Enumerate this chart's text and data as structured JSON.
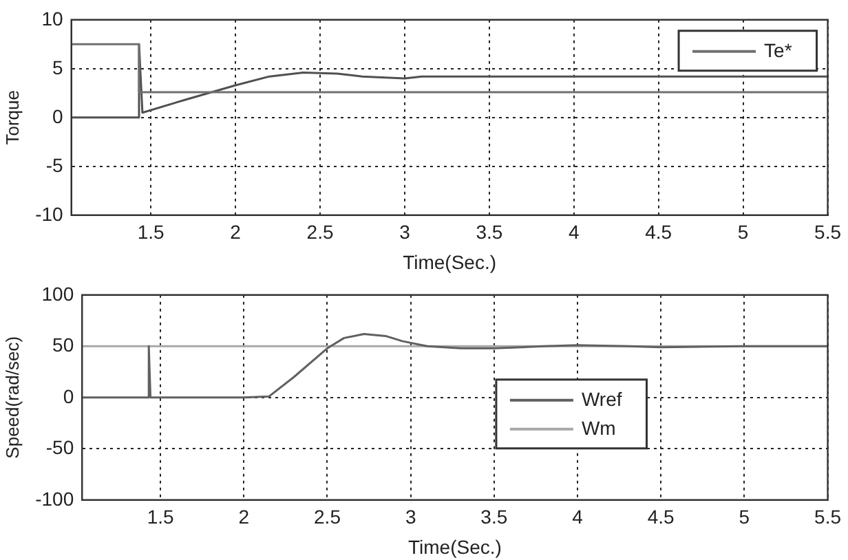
{
  "chart_data": [
    {
      "type": "line",
      "ylabel": "Torque",
      "xlabel": "Time(Sec.)",
      "xlim": [
        1.03,
        5.5
      ],
      "xticks": [
        1.5,
        2,
        2.5,
        3,
        3.5,
        4,
        4.5,
        5,
        5.5
      ],
      "ylim": [
        -10,
        10
      ],
      "yticks": [
        -10,
        -5,
        0,
        5,
        10
      ],
      "grid": true,
      "legend": "top right",
      "marker": "none",
      "line_style": "solid",
      "series": [
        {
          "name": "Te*",
          "color": "#707070",
          "x": [
            1.03,
            1.43,
            1.43,
            5.5
          ],
          "values": [
            7.5,
            7.5,
            2.6,
            2.6
          ]
        },
        {
          "color": "#505050",
          "x": [
            1.03,
            1.43,
            1.43,
            1.45,
            1.7,
            2.0,
            2.2,
            2.4,
            2.6,
            2.75,
            3.0,
            3.1,
            5.5
          ],
          "values": [
            0,
            0,
            7.5,
            0.5,
            1.8,
            3.3,
            4.2,
            4.6,
            4.5,
            4.2,
            4.0,
            4.2,
            4.2
          ]
        }
      ]
    },
    {
      "type": "line",
      "ylabel": "Speed(rad/sec)",
      "xlabel": "Time(Sec.)",
      "xlim": [
        1.03,
        5.5
      ],
      "xticks": [
        1.5,
        2,
        2.5,
        3,
        3.5,
        4,
        4.5,
        5,
        5.5
      ],
      "ylim": [
        -100,
        100
      ],
      "yticks": [
        -100,
        -50,
        0,
        50,
        100
      ],
      "grid": true,
      "legend": "right",
      "marker": "none",
      "line_style": "solid",
      "series": [
        {
          "name": "Wref",
          "color": "#606060",
          "x": [
            1.03,
            1.43,
            1.43,
            1.44,
            2.0,
            2.15,
            2.3,
            2.5,
            2.6,
            2.72,
            2.85,
            2.95,
            3.1,
            3.3,
            3.5,
            3.8,
            4.0,
            4.3,
            4.5,
            5.0,
            5.5
          ],
          "values": [
            0,
            0,
            50,
            0,
            0,
            1,
            20,
            48,
            58,
            62,
            60,
            55,
            50,
            48,
            48,
            50,
            51,
            50,
            49,
            50,
            50
          ]
        },
        {
          "name": "Wm",
          "color": "#a8a8a8",
          "x": [
            1.03,
            5.5
          ],
          "values": [
            50,
            50
          ]
        }
      ]
    }
  ]
}
